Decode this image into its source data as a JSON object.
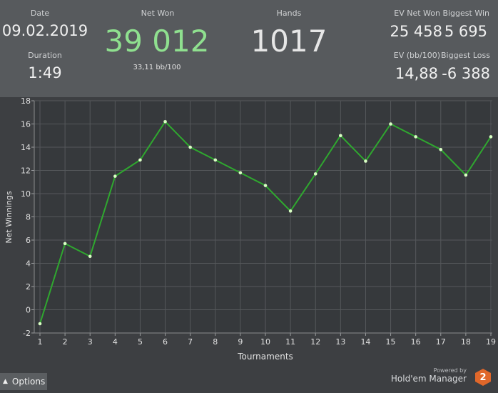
{
  "header": {
    "date_label": "Date",
    "date_value": "09.02.2019",
    "duration_label": "Duration",
    "duration_value": "1:49",
    "net_won_label": "Net Won",
    "net_won_value": "39 012",
    "net_won_sub": "33,11 bb/100",
    "hands_label": "Hands",
    "hands_value": "1017",
    "ev_net_won_label": "EV Net Won",
    "ev_net_won_value": "25 458",
    "biggest_win_label": "Biggest Win",
    "biggest_win_value": "5 695",
    "ev_bb100_label": "EV (bb/100)",
    "ev_bb100_value": "14,88",
    "biggest_loss_label": "Biggest Loss",
    "biggest_loss_value": "-6 388"
  },
  "colors": {
    "net_won": "#8fe08f",
    "line": "#2fa82f",
    "point": "#d9ffc4",
    "grid": "#55585b",
    "plot_bg": "#36393c"
  },
  "footer": {
    "options_label": "Options",
    "options_icon": "caret-up-icon",
    "powered_by": "Powered by",
    "brand_name": "Hold'em Manager",
    "brand_badge": "2"
  },
  "chart_data": {
    "type": "line",
    "xlabel": "Tournaments",
    "ylabel": "Net Winnings",
    "x": [
      1,
      2,
      3,
      4,
      5,
      6,
      7,
      8,
      9,
      10,
      11,
      12,
      13,
      14,
      15,
      16,
      17,
      18,
      19
    ],
    "series": [
      {
        "values": [
          -1.2,
          5.7,
          4.6,
          11.5,
          12.9,
          16.2,
          14.0,
          12.9,
          11.8,
          10.7,
          8.5,
          11.7,
          15.0,
          12.8,
          16.0,
          14.9,
          13.8,
          11.6,
          14.9
        ]
      }
    ],
    "ylim": [
      -2,
      18
    ],
    "yticks": [
      -2,
      0,
      2,
      4,
      6,
      8,
      10,
      12,
      14,
      16,
      18
    ],
    "xticks": [
      1,
      2,
      3,
      4,
      5,
      6,
      7,
      8,
      9,
      10,
      11,
      12,
      13,
      14,
      15,
      16,
      17,
      18,
      19
    ],
    "grid": true,
    "legend": "none"
  }
}
